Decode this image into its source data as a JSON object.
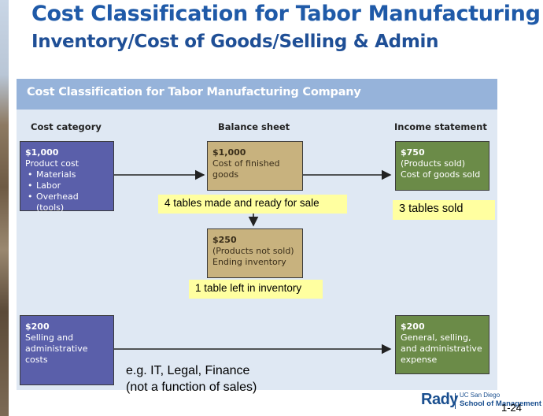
{
  "slide": {
    "title": "Cost Classification for Tabor Manufacturing",
    "subtitle": "Inventory/Cost of Goods/Selling & Admin",
    "page_number": "1-24"
  },
  "figure": {
    "header": "Cost Classification for Tabor Manufacturing Company",
    "columns": {
      "cost_category": "Cost category",
      "balance_sheet": "Balance sheet",
      "income_statement": "Income statement"
    },
    "product_cost_box": {
      "amount": "$1,000",
      "label": "Product cost",
      "items": [
        "Materials",
        "Labor",
        "Overhead (tools)"
      ]
    },
    "finished_goods_box": {
      "amount": "$1,000",
      "line1": "Cost of finished",
      "line2": "goods"
    },
    "ending_inventory_box": {
      "amount": "$250",
      "line1": "(Products not sold)",
      "line2": "Ending inventory"
    },
    "cogs_box": {
      "amount": "$750",
      "line1": "(Products sold)",
      "line2": "Cost of goods sold"
    },
    "sga_cost_box": {
      "amount": "$200",
      "line1": "Selling and",
      "line2": "administrative",
      "line3": "costs"
    },
    "sga_expense_box": {
      "amount": "$200",
      "line1": "General, selling,",
      "line2": "and administrative",
      "line3": "expense"
    }
  },
  "callouts": {
    "made_ready": "4 tables made and ready for sale",
    "sold": "3 tables sold",
    "left_in_inventory": "1 table left in inventory"
  },
  "note": {
    "line1": "e.g. IT, Legal, Finance",
    "line2": "(not a function of sales)"
  },
  "logo": {
    "brand": "Rady",
    "university": "UC San Diego",
    "school": "School of Management"
  },
  "colors": {
    "title": "#1f5aa8",
    "figure_bg": "#dfe8f3",
    "header_bar": "#96b3da",
    "product_box": "#5a5faa",
    "balance_box": "#c8b27e",
    "income_box": "#6b8b48",
    "callout": "#ffffa0"
  }
}
